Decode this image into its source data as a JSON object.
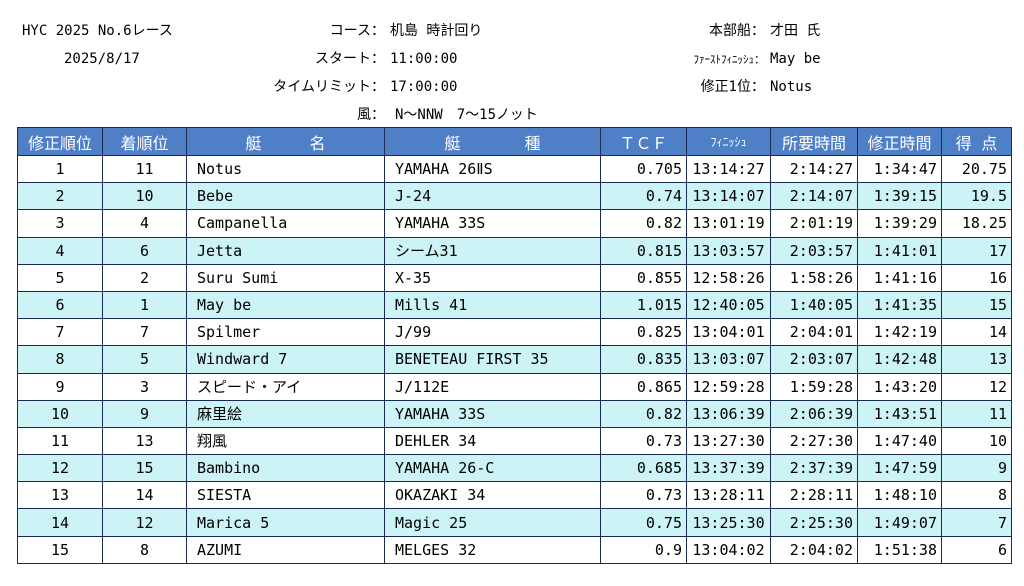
{
  "header": {
    "race_title": "HYC 2025 No.6レース",
    "date": "2025/8/17",
    "course_label": "コース：",
    "course_value": "机島 時計回り",
    "start_label": "スタート：",
    "start_value": "11:00:00",
    "limit_label": "タイムリミット：",
    "limit_value": "17:00:00",
    "wind_label": "風：",
    "wind_value": "N〜NNW　7〜15ノット",
    "hq_label": "本部船：",
    "hq_value": "才田 氏",
    "first_finish_label": "ﾌｧｰｽﾄﾌｨﾆｯｼｭ：",
    "first_finish_value": "May be",
    "corrected_first_label": "修正1位：",
    "corrected_first_value": "Notus"
  },
  "table": {
    "columns": [
      "修正順位",
      "着順位",
      "艇　　　名",
      "艇　　　　種",
      "ＴＣＦ",
      "ﾌｨﾆｯｼｭ",
      "所要時間",
      "修正時間",
      "得 点"
    ],
    "rows": [
      {
        "rank": "1",
        "finish": "11",
        "boat": "Notus",
        "type": "YAMAHA 26ⅡS",
        "tcf": "0.705",
        "finish_time": "13:14:27",
        "elapsed": "2:14:27",
        "corrected": "1:34:47",
        "points": "20.75"
      },
      {
        "rank": "2",
        "finish": "10",
        "boat": "Bebe",
        "type": "J-24",
        "tcf": "0.74",
        "finish_time": "13:14:07",
        "elapsed": "2:14:07",
        "corrected": "1:39:15",
        "points": "19.5"
      },
      {
        "rank": "3",
        "finish": "4",
        "boat": "Campanella",
        "type": "YAMAHA 33S",
        "tcf": "0.82",
        "finish_time": "13:01:19",
        "elapsed": "2:01:19",
        "corrected": "1:39:29",
        "points": "18.25"
      },
      {
        "rank": "4",
        "finish": "6",
        "boat": "Jetta",
        "type": "シーム31",
        "tcf": "0.815",
        "finish_time": "13:03:57",
        "elapsed": "2:03:57",
        "corrected": "1:41:01",
        "points": "17"
      },
      {
        "rank": "5",
        "finish": "2",
        "boat": "Suru Sumi",
        "type": "X-35",
        "tcf": "0.855",
        "finish_time": "12:58:26",
        "elapsed": "1:58:26",
        "corrected": "1:41:16",
        "points": "16"
      },
      {
        "rank": "6",
        "finish": "1",
        "boat": "May be",
        "type": "Mills 41",
        "tcf": "1.015",
        "finish_time": "12:40:05",
        "elapsed": "1:40:05",
        "corrected": "1:41:35",
        "points": "15"
      },
      {
        "rank": "7",
        "finish": "7",
        "boat": "Spilmer",
        "type": "J/99",
        "tcf": "0.825",
        "finish_time": "13:04:01",
        "elapsed": "2:04:01",
        "corrected": "1:42:19",
        "points": "14"
      },
      {
        "rank": "8",
        "finish": "5",
        "boat": "Windward 7",
        "type": "BENETEAU FIRST 35",
        "tcf": "0.835",
        "finish_time": "13:03:07",
        "elapsed": "2:03:07",
        "corrected": "1:42:48",
        "points": "13"
      },
      {
        "rank": "9",
        "finish": "3",
        "boat": "スピード・アイ",
        "type": "J/112E",
        "tcf": "0.865",
        "finish_time": "12:59:28",
        "elapsed": "1:59:28",
        "corrected": "1:43:20",
        "points": "12"
      },
      {
        "rank": "10",
        "finish": "9",
        "boat": "麻里絵",
        "type": "YAMAHA 33S",
        "tcf": "0.82",
        "finish_time": "13:06:39",
        "elapsed": "2:06:39",
        "corrected": "1:43:51",
        "points": "11"
      },
      {
        "rank": "11",
        "finish": "13",
        "boat": "翔風",
        "type": "DEHLER 34",
        "tcf": "0.73",
        "finish_time": "13:27:30",
        "elapsed": "2:27:30",
        "corrected": "1:47:40",
        "points": "10"
      },
      {
        "rank": "12",
        "finish": "15",
        "boat": "Bambino",
        "type": "YAMAHA 26-C",
        "tcf": "0.685",
        "finish_time": "13:37:39",
        "elapsed": "2:37:39",
        "corrected": "1:47:59",
        "points": "9"
      },
      {
        "rank": "13",
        "finish": "14",
        "boat": "SIESTA",
        "type": "OKAZAKI 34",
        "tcf": "0.73",
        "finish_time": "13:28:11",
        "elapsed": "2:28:11",
        "corrected": "1:48:10",
        "points": "8"
      },
      {
        "rank": "14",
        "finish": "12",
        "boat": "Marica 5",
        "type": "Magic 25",
        "tcf": "0.75",
        "finish_time": "13:25:30",
        "elapsed": "2:25:30",
        "corrected": "1:49:07",
        "points": "7"
      },
      {
        "rank": "15",
        "finish": "8",
        "boat": "AZUMI",
        "type": "MELGES 32",
        "tcf": "0.9",
        "finish_time": "13:04:02",
        "elapsed": "2:04:02",
        "corrected": "1:51:38",
        "points": "6"
      }
    ]
  },
  "colors": {
    "header_bg": "#4f7fc7",
    "row_alt_bg": "#ccf3f5",
    "border": "#1b2a55"
  }
}
